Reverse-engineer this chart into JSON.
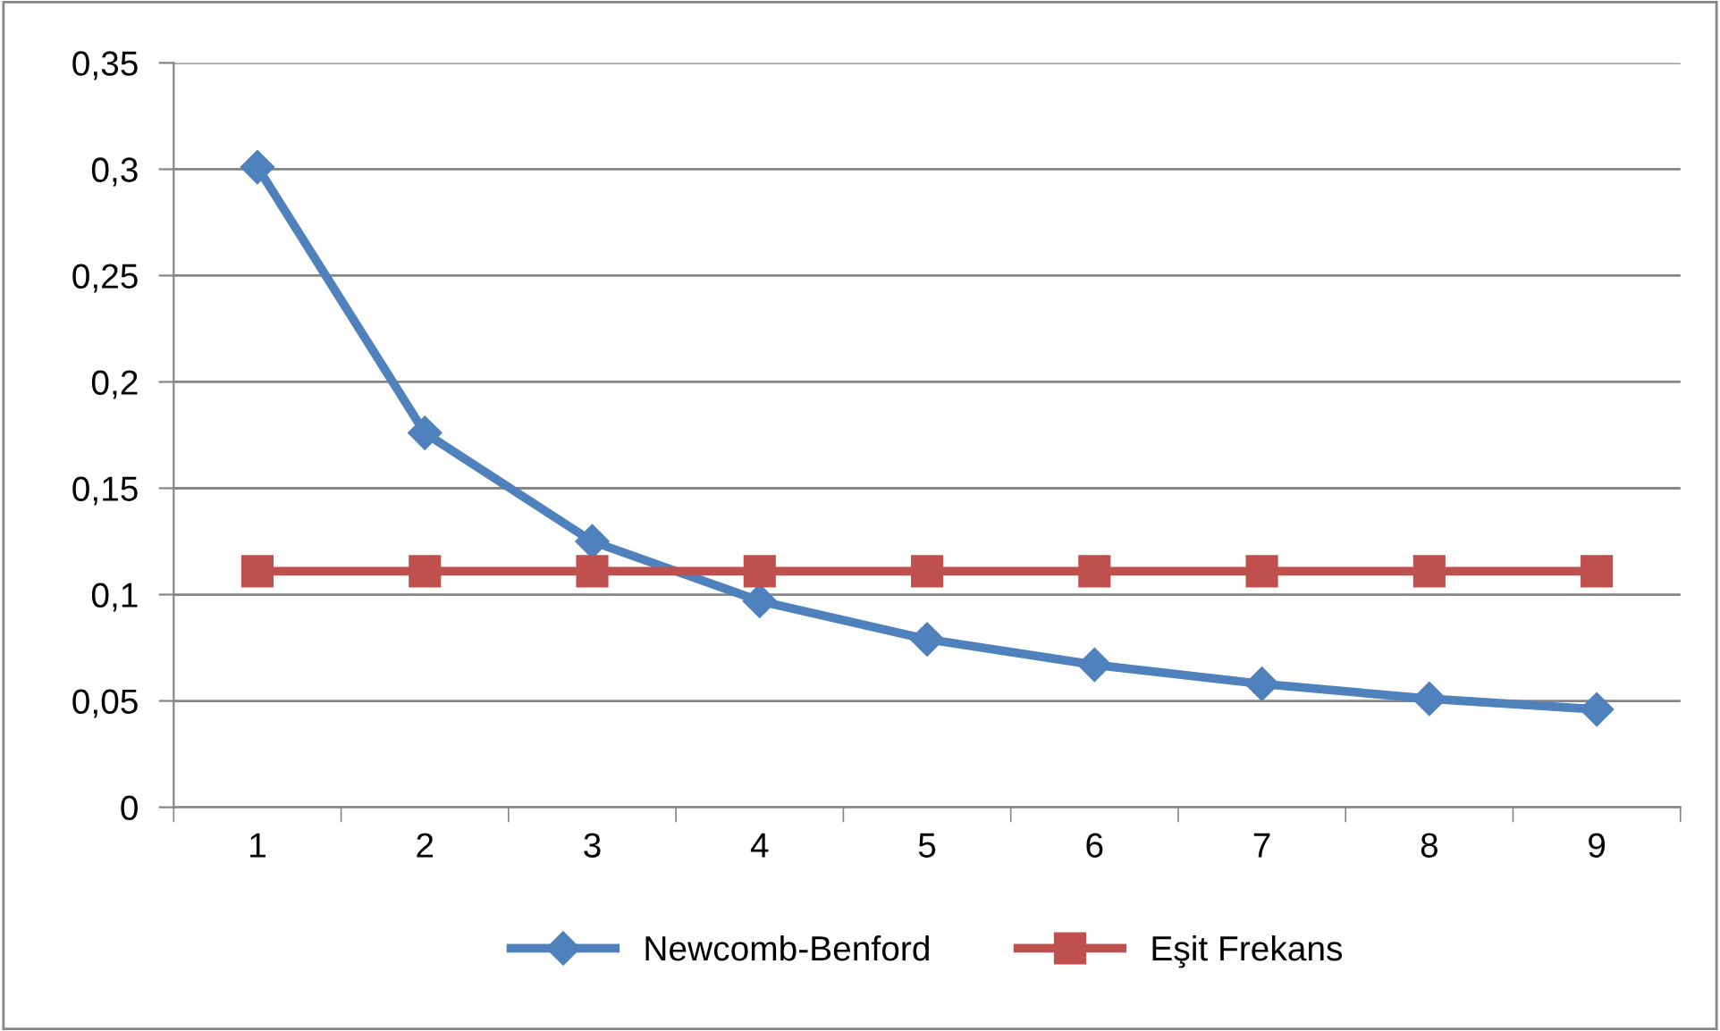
{
  "chart_data": {
    "type": "line",
    "categories": [
      "1",
      "2",
      "3",
      "4",
      "5",
      "6",
      "7",
      "8",
      "9"
    ],
    "series": [
      {
        "name": "Newcomb-Benford",
        "color": "#4f81bd",
        "marker": "diamond",
        "values": [
          0.301,
          0.176,
          0.125,
          0.097,
          0.079,
          0.067,
          0.058,
          0.051,
          0.046
        ]
      },
      {
        "name": "Eşit Frekans",
        "color": "#c0504d",
        "marker": "square",
        "values": [
          0.111,
          0.111,
          0.111,
          0.111,
          0.111,
          0.111,
          0.111,
          0.111,
          0.111
        ]
      }
    ],
    "ylim": [
      0,
      0.35
    ],
    "yticks": [
      0,
      {
        "value": 0.05,
        "label": "0,05"
      },
      {
        "value": 0.1,
        "label": "0,1"
      },
      {
        "value": 0.15,
        "label": "0,15"
      },
      {
        "value": 0.2,
        "label": "0,2"
      },
      {
        "value": 0.25,
        "label": "0,25"
      },
      {
        "value": 0.3,
        "label": "0,3"
      },
      {
        "value": 0.35,
        "label": "0,35"
      }
    ],
    "grid": "y",
    "legend": "bottom",
    "line_style": "solid"
  }
}
